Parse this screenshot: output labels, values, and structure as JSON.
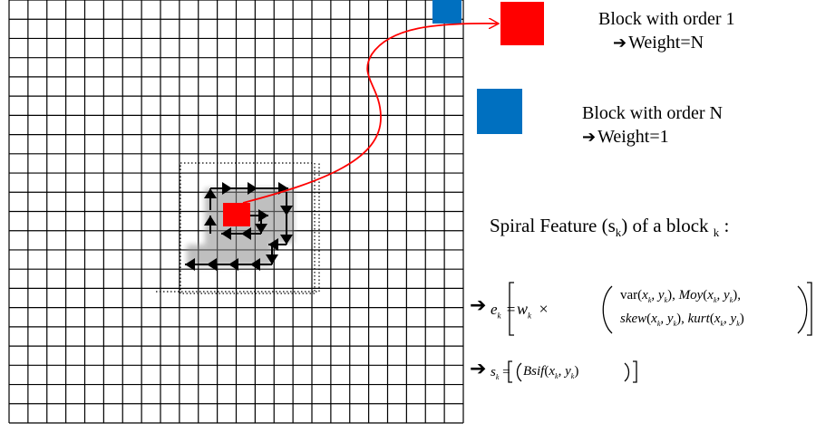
{
  "legend": {
    "block_order_1": {
      "title": "Block with order 1",
      "weight": "Weight=N",
      "color": "#ff0000"
    },
    "block_order_n": {
      "title": "Block with order N",
      "weight": "Weight=1",
      "color": "#0070c0"
    }
  },
  "formula": {
    "heading": "Spiral Feature (s",
    "heading_sub": "k",
    "heading_mid": ") of a block",
    "heading_end_sub": "k",
    "heading_colon": ":",
    "e_lhs": "e",
    "e_sub": "k",
    "w": "w",
    "w_sub": "k",
    "times": "×",
    "row1": "var(x_k, y_k), Moy(x_k, y_k),",
    "row2": "skew(x_k, y_k), kurt(x_k, y_k)",
    "s_lhs": "s",
    "s_sub": "k",
    "s_rhs": "Bsif(x_k, y_k)"
  },
  "grid": {
    "rows": 22,
    "cols": 24
  },
  "colors": {
    "grid_line": "#000000",
    "curve": "#ff0000",
    "arrow": "#000000",
    "shadow": "#9e9e9e"
  }
}
